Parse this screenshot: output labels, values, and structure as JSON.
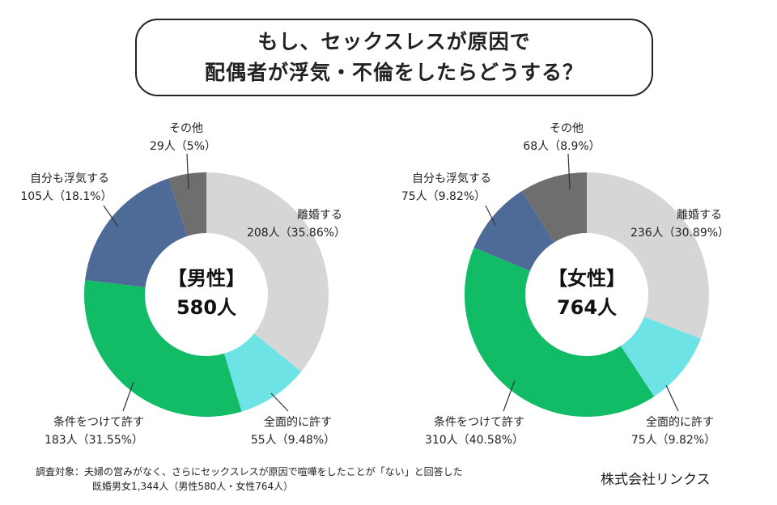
{
  "title": {
    "line1": "もし、セックスレスが原因で",
    "line2": "配偶者が浮気・不倫をしたらどうする？"
  },
  "chart_data": [
    {
      "type": "pie",
      "center_title": "【男性】",
      "center_value": "580人",
      "categories": [
        "離婚する",
        "全面的に許す",
        "条件をつけて許す",
        "自分も浮気する",
        "その他"
      ],
      "counts_text": [
        "208人（35.86%）",
        "55人（9.48%）",
        "183人（31.55%）",
        "105人（18.1%）",
        "29人（5%）"
      ],
      "values": [
        35.86,
        9.48,
        31.55,
        18.1,
        5
      ],
      "colors": [
        "#d6d6d6",
        "#6ee3e6",
        "#12bb66",
        "#4e6a96",
        "#6e6e6e"
      ]
    },
    {
      "type": "pie",
      "center_title": "【女性】",
      "center_value": "764人",
      "categories": [
        "離婚する",
        "全面的に許す",
        "条件をつけて許す",
        "自分も浮気する",
        "その他"
      ],
      "counts_text": [
        "236人（30.89%）",
        "75人（9.82%）",
        "310人（40.58%）",
        "75人（9.82%）",
        "68人（8.9%）"
      ],
      "values": [
        30.89,
        9.82,
        40.58,
        9.82,
        8.9
      ],
      "colors": [
        "#d6d6d6",
        "#6ee3e6",
        "#12bb66",
        "#4e6a96",
        "#6e6e6e"
      ]
    }
  ],
  "footnote": {
    "line1": "調査対象：夫婦の営みがなく、さらにセックスレスが原因で喧嘩をしたことが「ない」と回答した",
    "line2": "既婚男女1,344人（男性580人・女性764人）"
  },
  "company": "株式会社リンクス"
}
